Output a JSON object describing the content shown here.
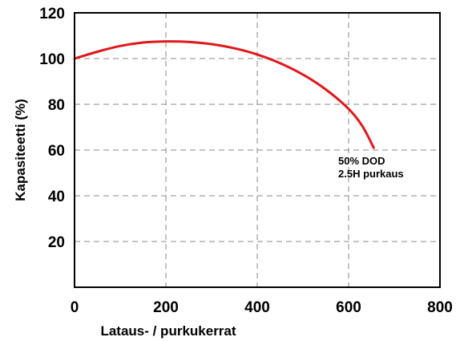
{
  "chart_data": {
    "type": "line",
    "title": "",
    "xlabel": "Lataus- / purkukerrat",
    "ylabel": "Kapasiteetti (%)",
    "xlim": [
      0,
      800
    ],
    "ylim": [
      0,
      120
    ],
    "x_ticks": [
      0,
      200,
      400,
      600,
      800
    ],
    "y_ticks": [
      20,
      40,
      60,
      80,
      100,
      120
    ],
    "x_tick_labels": [
      "0",
      "200",
      "400",
      "600",
      "800"
    ],
    "y_tick_labels": [
      "20",
      "40",
      "60",
      "80",
      "100",
      "120"
    ],
    "grid": true,
    "legend": "none",
    "series": [
      {
        "color": "#e0181b",
        "x": [
          0,
          50,
          100,
          150,
          200,
          250,
          300,
          350,
          400,
          450,
          500,
          550,
          600,
          630,
          655
        ],
        "y": [
          100,
          103,
          105.5,
          107,
          107.5,
          107.3,
          106.3,
          104.5,
          101.8,
          98,
          93,
          86.5,
          78,
          70.5,
          61
        ]
      }
    ],
    "annotations": [
      {
        "lines": [
          "50% DOD",
          "2.5H purkaus"
        ]
      }
    ]
  }
}
